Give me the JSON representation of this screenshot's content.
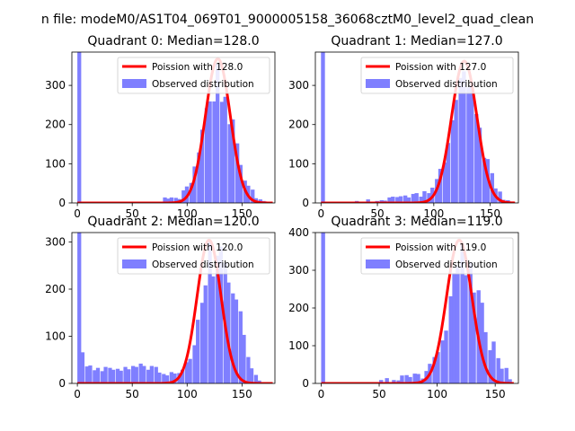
{
  "suptitle": "n file: modeM0/AS1T04_069T01_9000005158_36068cztM0_level2_quad_clean",
  "colors": {
    "hist": "#7f7fff",
    "line": "#ff0000",
    "axis": "#000000"
  },
  "chart_data": [
    {
      "type": "histogram+line",
      "title": "Quadrant 0: Median=128.0",
      "xlim": [
        -5,
        180
      ],
      "ylim": [
        0,
        385
      ],
      "xticks": [
        0,
        50,
        100,
        150
      ],
      "yticks": [
        0,
        100,
        200,
        300
      ],
      "legend": {
        "placement": "top-right",
        "line_label": "Poission with 128.0",
        "hist_label": "Observed distribution"
      },
      "bin_width": 3.5,
      "bins": [
        [
          0,
          385
        ],
        [
          78,
          14
        ],
        [
          81,
          11
        ],
        [
          84,
          14
        ],
        [
          88,
          13
        ],
        [
          91,
          10
        ],
        [
          95,
          32
        ],
        [
          98,
          42
        ],
        [
          102,
          51
        ],
        [
          105,
          93
        ],
        [
          109,
          129
        ],
        [
          112,
          187
        ],
        [
          116,
          242
        ],
        [
          119,
          259
        ],
        [
          123,
          259
        ],
        [
          126,
          355
        ],
        [
          130,
          258
        ],
        [
          133,
          271
        ],
        [
          137,
          201
        ],
        [
          140,
          213
        ],
        [
          144,
          152
        ],
        [
          147,
          97
        ],
        [
          151,
          57
        ],
        [
          154,
          44
        ],
        [
          158,
          34
        ],
        [
          161,
          12
        ],
        [
          165,
          9
        ],
        [
          168,
          5
        ],
        [
          172,
          2
        ]
      ],
      "poisson_mean": 128.0,
      "poisson_peak": 368,
      "x_range": [
        0,
        178
      ]
    },
    {
      "type": "histogram+line",
      "title": "Quadrant 1: Median=127.0",
      "xlim": [
        -5,
        175
      ],
      "ylim": [
        0,
        385
      ],
      "xticks": [
        0,
        50,
        100,
        150
      ],
      "yticks": [
        0,
        100,
        200,
        300
      ],
      "legend": {
        "placement": "top-right",
        "line_label": "Poission with 127.0",
        "hist_label": "Observed distribution"
      },
      "bin_width": 3.5,
      "bins": [
        [
          0,
          385
        ],
        [
          30,
          5
        ],
        [
          40,
          9
        ],
        [
          48,
          5
        ],
        [
          52,
          7
        ],
        [
          55,
          6
        ],
        [
          59,
          14
        ],
        [
          62,
          16
        ],
        [
          66,
          15
        ],
        [
          69,
          17
        ],
        [
          73,
          19
        ],
        [
          76,
          14
        ],
        [
          80,
          23
        ],
        [
          83,
          25
        ],
        [
          87,
          16
        ],
        [
          90,
          30
        ],
        [
          94,
          25
        ],
        [
          97,
          39
        ],
        [
          101,
          61
        ],
        [
          104,
          87
        ],
        [
          108,
          103
        ],
        [
          111,
          153
        ],
        [
          115,
          211
        ],
        [
          118,
          263
        ],
        [
          122,
          319
        ],
        [
          125,
          336
        ],
        [
          129,
          295
        ],
        [
          132,
          302
        ],
        [
          136,
          227
        ],
        [
          139,
          192
        ],
        [
          143,
          115
        ],
        [
          146,
          112
        ],
        [
          150,
          76
        ],
        [
          153,
          37
        ],
        [
          157,
          29
        ],
        [
          160,
          8
        ],
        [
          164,
          7
        ]
      ],
      "poisson_mean": 127.0,
      "poisson_peak": 362,
      "x_range": [
        0,
        172
      ]
    },
    {
      "type": "histogram+line",
      "title": "Quadrant 2: Median=120.0",
      "xlim": [
        -5,
        180
      ],
      "ylim": [
        0,
        320
      ],
      "xticks": [
        0,
        50,
        100,
        150
      ],
      "yticks": [
        0,
        100,
        200,
        300
      ],
      "legend": {
        "placement": "top-right",
        "line_label": "Poission with 120.0",
        "hist_label": "Observed distribution"
      },
      "bin_width": 3.5,
      "bins": [
        [
          0,
          320
        ],
        [
          3,
          66
        ],
        [
          7,
          36
        ],
        [
          10,
          38
        ],
        [
          14,
          28
        ],
        [
          17,
          33
        ],
        [
          21,
          26
        ],
        [
          24,
          35
        ],
        [
          28,
          33
        ],
        [
          31,
          29
        ],
        [
          35,
          31
        ],
        [
          38,
          27
        ],
        [
          42,
          35
        ],
        [
          45,
          30
        ],
        [
          49,
          37
        ],
        [
          52,
          35
        ],
        [
          56,
          42
        ],
        [
          59,
          37
        ],
        [
          63,
          29
        ],
        [
          66,
          37
        ],
        [
          70,
          35
        ],
        [
          73,
          23
        ],
        [
          77,
          20
        ],
        [
          80,
          17
        ],
        [
          84,
          24
        ],
        [
          87,
          21
        ],
        [
          91,
          22
        ],
        [
          94,
          29
        ],
        [
          98,
          45
        ],
        [
          101,
          52
        ],
        [
          105,
          81
        ],
        [
          108,
          135
        ],
        [
          112,
          171
        ],
        [
          115,
          208
        ],
        [
          119,
          300
        ],
        [
          122,
          227
        ],
        [
          126,
          271
        ],
        [
          129,
          290
        ],
        [
          133,
          256
        ],
        [
          136,
          214
        ],
        [
          140,
          191
        ],
        [
          143,
          178
        ],
        [
          147,
          153
        ],
        [
          150,
          103
        ],
        [
          154,
          56
        ],
        [
          157,
          32
        ],
        [
          161,
          18
        ],
        [
          164,
          6
        ]
      ],
      "poisson_mean": 120.0,
      "poisson_peak": 304,
      "x_range": [
        0,
        178
      ]
    },
    {
      "type": "histogram+line",
      "title": "Quadrant 3: Median=119.0",
      "xlim": [
        -5,
        170
      ],
      "ylim": [
        0,
        400
      ],
      "xticks": [
        0,
        50,
        100,
        150
      ],
      "yticks": [
        0,
        100,
        200,
        300,
        400
      ],
      "legend": {
        "placement": "top-right",
        "line_label": "Poission with 119.0",
        "hist_label": "Observed distribution"
      },
      "bin_width": 3.4,
      "bins": [
        [
          0,
          400
        ],
        [
          50,
          9
        ],
        [
          55,
          14
        ],
        [
          61,
          9
        ],
        [
          65,
          8
        ],
        [
          68,
          21
        ],
        [
          72,
          22
        ],
        [
          75,
          17
        ],
        [
          79,
          26
        ],
        [
          82,
          25
        ],
        [
          86,
          13
        ],
        [
          89,
          33
        ],
        [
          92,
          52
        ],
        [
          96,
          70
        ],
        [
          99,
          83
        ],
        [
          103,
          114
        ],
        [
          106,
          140
        ],
        [
          110,
          231
        ],
        [
          113,
          293
        ],
        [
          116,
          310
        ],
        [
          120,
          368
        ],
        [
          123,
          287
        ],
        [
          127,
          321
        ],
        [
          130,
          241
        ],
        [
          134,
          247
        ],
        [
          137,
          214
        ],
        [
          140,
          136
        ],
        [
          144,
          88
        ],
        [
          147,
          111
        ],
        [
          151,
          67
        ],
        [
          154,
          39
        ],
        [
          158,
          41
        ],
        [
          161,
          11
        ]
      ],
      "poisson_mean": 119.0,
      "poisson_peak": 380,
      "x_range": [
        0,
        166
      ]
    }
  ]
}
